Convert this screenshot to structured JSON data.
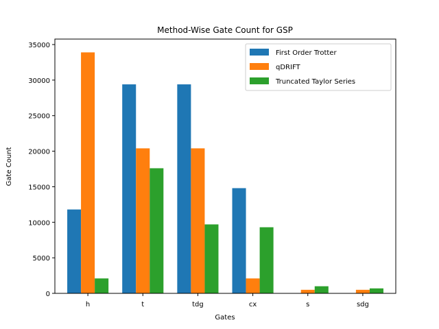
{
  "chart_data": {
    "type": "bar",
    "title": "Method-Wise Gate Count for GSP",
    "xlabel": "Gates",
    "ylabel": "Gate Count",
    "categories": [
      "h",
      "t",
      "tdg",
      "cx",
      "s",
      "sdg"
    ],
    "ylim": [
      0,
      35000
    ],
    "yticks": [
      0,
      5000,
      10000,
      15000,
      20000,
      25000,
      30000,
      35000
    ],
    "legend_position": "top-right",
    "grid": false,
    "series": [
      {
        "name": "First Order Trotter",
        "color": "#1f77b4",
        "values": [
          11800,
          29400,
          29400,
          14800,
          0,
          0
        ]
      },
      {
        "name": "qDRIFT",
        "color": "#ff7f0e",
        "values": [
          33900,
          20400,
          20400,
          2100,
          500,
          500
        ]
      },
      {
        "name": "Truncated Taylor Series",
        "color": "#2ca02c",
        "values": [
          2100,
          17600,
          9700,
          9300,
          1000,
          700
        ]
      }
    ]
  }
}
